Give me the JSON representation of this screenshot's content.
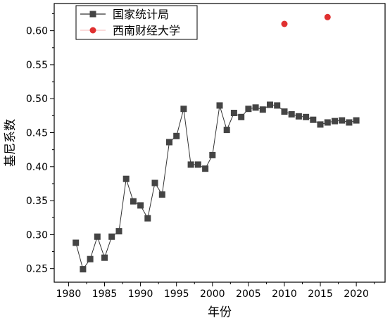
{
  "chart_data": {
    "type": "line",
    "xlabel": "年份",
    "ylabel": "基尼系数",
    "xlim": [
      1978,
      2024
    ],
    "ylim": [
      0.23,
      0.64
    ],
    "x_ticks": [
      1980,
      1985,
      1990,
      1995,
      2000,
      2005,
      2010,
      2015,
      2020
    ],
    "y_ticks": [
      0.25,
      0.3,
      0.35,
      0.4,
      0.45,
      0.5,
      0.55,
      0.6
    ],
    "legend_position": "top-left",
    "series": [
      {
        "name": "国家统计局",
        "style": "line-square",
        "color": "#333333",
        "marker_color": "#444444",
        "x": [
          1981,
          1982,
          1983,
          1984,
          1985,
          1986,
          1987,
          1988,
          1989,
          1990,
          1991,
          1992,
          1993,
          1994,
          1995,
          1996,
          1997,
          1998,
          1999,
          2000,
          2001,
          2002,
          2003,
          2004,
          2005,
          2006,
          2007,
          2008,
          2009,
          2010,
          2011,
          2012,
          2013,
          2014,
          2015,
          2016,
          2017,
          2018,
          2019,
          2020
        ],
        "y": [
          0.288,
          0.249,
          0.264,
          0.297,
          0.266,
          0.297,
          0.305,
          0.382,
          0.349,
          0.343,
          0.324,
          0.376,
          0.359,
          0.436,
          0.445,
          0.485,
          0.403,
          0.403,
          0.397,
          0.417,
          0.49,
          0.454,
          0.479,
          0.473,
          0.485,
          0.487,
          0.484,
          0.491,
          0.49,
          0.481,
          0.477,
          0.474,
          0.473,
          0.469,
          0.462,
          0.465,
          0.467,
          0.468,
          0.465,
          0.468
        ]
      },
      {
        "name": "西南财经大学",
        "style": "scatter-circle",
        "color": "#e03030",
        "x": [
          2010,
          2016
        ],
        "y": [
          0.61,
          0.62
        ]
      }
    ]
  }
}
